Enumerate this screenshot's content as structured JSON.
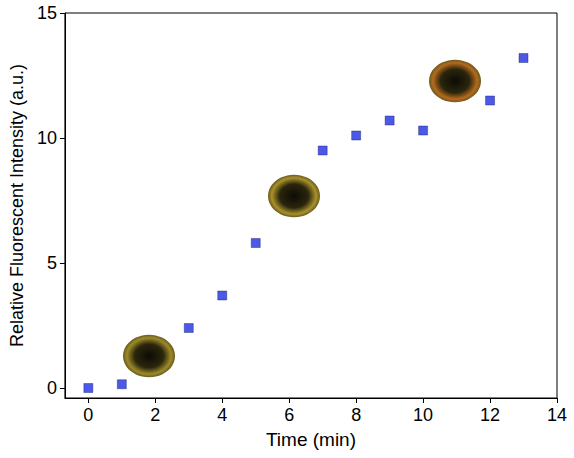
{
  "chart_data": {
    "type": "scatter",
    "x_label": "Time (min)",
    "y_label": "Relative Fluorescent Intensity (a.u.)",
    "x": [
      0,
      1,
      3,
      4,
      5,
      7,
      8,
      9,
      10,
      12,
      13
    ],
    "values": [
      0,
      0.15,
      2.4,
      3.7,
      5.8,
      9.5,
      10.1,
      10.7,
      10.3,
      11.5,
      13.2
    ],
    "color": "#1f2fe0",
    "marker": "square",
    "xlim": [
      -0.7,
      14
    ],
    "xticks": [
      0,
      2,
      4,
      6,
      8,
      10,
      12,
      14
    ],
    "ylim": [
      -0.4,
      15
    ],
    "yticks": [
      0,
      5,
      10,
      15
    ],
    "grid": false
  }
}
